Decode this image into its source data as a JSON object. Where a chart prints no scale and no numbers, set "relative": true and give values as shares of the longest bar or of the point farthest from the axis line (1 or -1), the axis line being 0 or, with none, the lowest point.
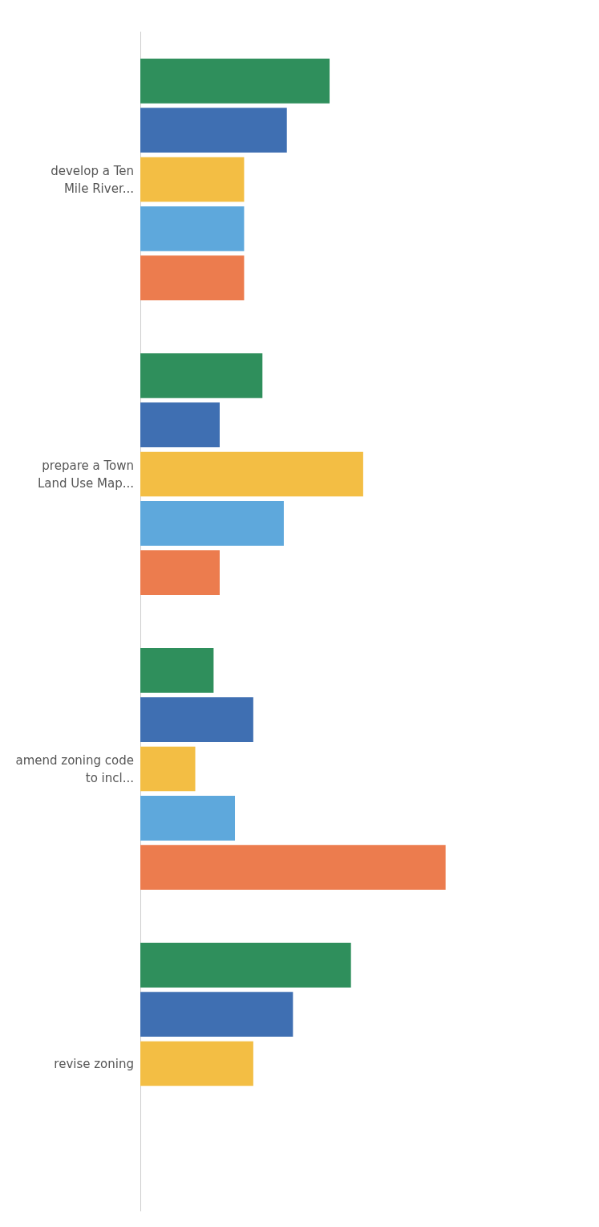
{
  "chart_data": {
    "type": "bar",
    "orientation": "horizontal",
    "relative": true,
    "categories": [
      "develop a Ten Mile River...",
      "prepare a Town Land Use Map...",
      "amend zoning code to incl...",
      "revise zoning"
    ],
    "series": [
      {
        "color": "#2f8f5c",
        "values": [
          0.62,
          0.4,
          0.24,
          0.69
        ]
      },
      {
        "color": "#3f6fb2",
        "values": [
          0.48,
          0.26,
          0.37,
          0.5
        ]
      },
      {
        "color": "#f3be44",
        "values": [
          0.34,
          0.73,
          0.18,
          0.37
        ]
      },
      {
        "color": "#5ea8dc",
        "values": [
          0.34,
          0.47,
          0.31,
          null
        ]
      },
      {
        "color": "#ec7c4e",
        "values": [
          0.34,
          0.26,
          1,
          null
        ]
      }
    ]
  }
}
